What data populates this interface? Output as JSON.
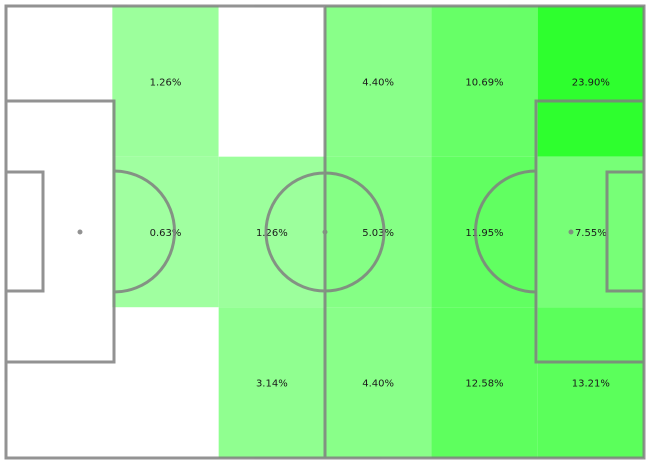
{
  "chart_data": {
    "type": "heatmap",
    "description_free": true,
    "columns": 6,
    "rows": 3,
    "value_unit": "%",
    "color_scale": {
      "low": "#ffffff",
      "high": "#2eff2e"
    },
    "cells": [
      {
        "col": 1,
        "row": 0,
        "value": 0,
        "label": ""
      },
      {
        "col": 2,
        "row": 0,
        "value": 1.26,
        "label": "1.26%"
      },
      {
        "col": 3,
        "row": 0,
        "value": 0,
        "label": ""
      },
      {
        "col": 4,
        "row": 0,
        "value": 4.4,
        "label": "4.40%"
      },
      {
        "col": 5,
        "row": 0,
        "value": 10.69,
        "label": "10.69%"
      },
      {
        "col": 6,
        "row": 0,
        "value": 23.9,
        "label": "23.90%"
      },
      {
        "col": 1,
        "row": 1,
        "value": 0,
        "label": ""
      },
      {
        "col": 2,
        "row": 1,
        "value": 0.63,
        "label": "0.63%"
      },
      {
        "col": 3,
        "row": 1,
        "value": 1.26,
        "label": "1.26%"
      },
      {
        "col": 4,
        "row": 1,
        "value": 5.03,
        "label": "5.03%"
      },
      {
        "col": 5,
        "row": 1,
        "value": 11.95,
        "label": "11.95%"
      },
      {
        "col": 6,
        "row": 1,
        "value": 7.55,
        "label": "7.55%"
      },
      {
        "col": 1,
        "row": 2,
        "value": 0,
        "label": ""
      },
      {
        "col": 2,
        "row": 2,
        "value": 0,
        "label": ""
      },
      {
        "col": 3,
        "row": 2,
        "value": 3.14,
        "label": "3.14%"
      },
      {
        "col": 4,
        "row": 2,
        "value": 4.4,
        "label": "4.40%"
      },
      {
        "col": 5,
        "row": 2,
        "value": 12.58,
        "label": "12.58%"
      },
      {
        "col": 6,
        "row": 2,
        "value": 13.21,
        "label": "13.21%"
      }
    ],
    "grid": false,
    "legend": "none"
  },
  "pitch": {
    "line_color": "#808080",
    "background": "#ffffff"
  }
}
